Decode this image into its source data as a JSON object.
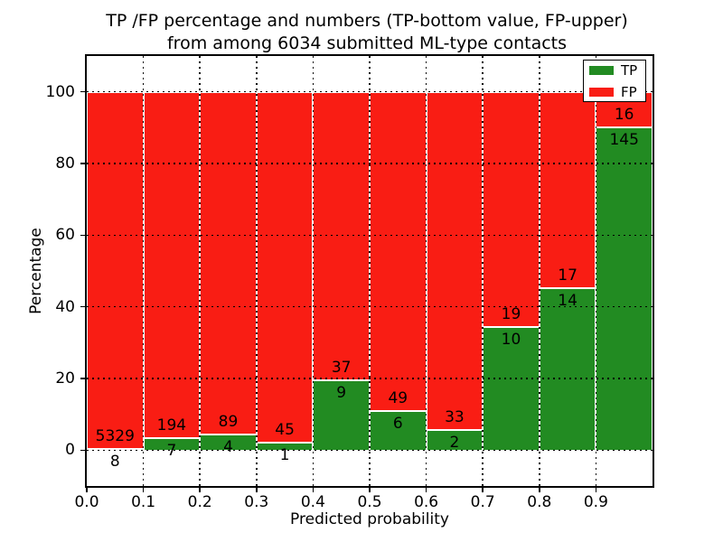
{
  "title": {
    "line1": "TP /FP percentage and numbers (TP-bottom value, FP-upper)",
    "line2": "from among 6034 submitted ML-type contacts"
  },
  "axes": {
    "xlabel": "Predicted probability",
    "ylabel": "Percentage",
    "xtick_labels": [
      "0.0",
      "0.1",
      "0.2",
      "0.3",
      "0.4",
      "0.5",
      "0.6",
      "0.7",
      "0.8",
      "0.9"
    ],
    "ytick_labels": [
      "0",
      "20",
      "40",
      "60",
      "80",
      "100"
    ]
  },
  "legend": {
    "items": [
      {
        "label": "TP",
        "color_key": "tp"
      },
      {
        "label": "FP",
        "color_key": "fp"
      }
    ]
  },
  "colors": {
    "tp": "#228B22",
    "fp": "#F91D14",
    "grid": "#000000",
    "bar_edge": "#FFFFFF",
    "background": "#FFFFFF"
  },
  "chart_data": {
    "type": "bar",
    "stacked": true,
    "normalized": "percent",
    "title": "TP /FP percentage and numbers (TP-bottom value, FP-upper) from among 6034 submitted ML-type contacts",
    "xlabel": "Predicted probability",
    "ylabel": "Percentage",
    "xlim": [
      0.0,
      1.0
    ],
    "ylim": [
      -10,
      110
    ],
    "grid": "dotted",
    "legend_position": "upper right",
    "total_contacts": 6034,
    "bin_edges": [
      0.0,
      0.1,
      0.2,
      0.3,
      0.4,
      0.5,
      0.6,
      0.7,
      0.8,
      0.9,
      1.0
    ],
    "series": [
      {
        "name": "TP",
        "counts": [
          8,
          7,
          4,
          1,
          9,
          6,
          2,
          10,
          14,
          145
        ]
      },
      {
        "name": "FP",
        "counts": [
          5329,
          194,
          89,
          45,
          37,
          49,
          33,
          19,
          17,
          16
        ]
      }
    ],
    "tp_percent": [
      0.15,
      3.48,
      4.3,
      2.17,
      19.57,
      10.91,
      5.71,
      34.48,
      45.16,
      90.06
    ],
    "yticks": [
      0,
      20,
      40,
      60,
      80,
      100
    ]
  }
}
